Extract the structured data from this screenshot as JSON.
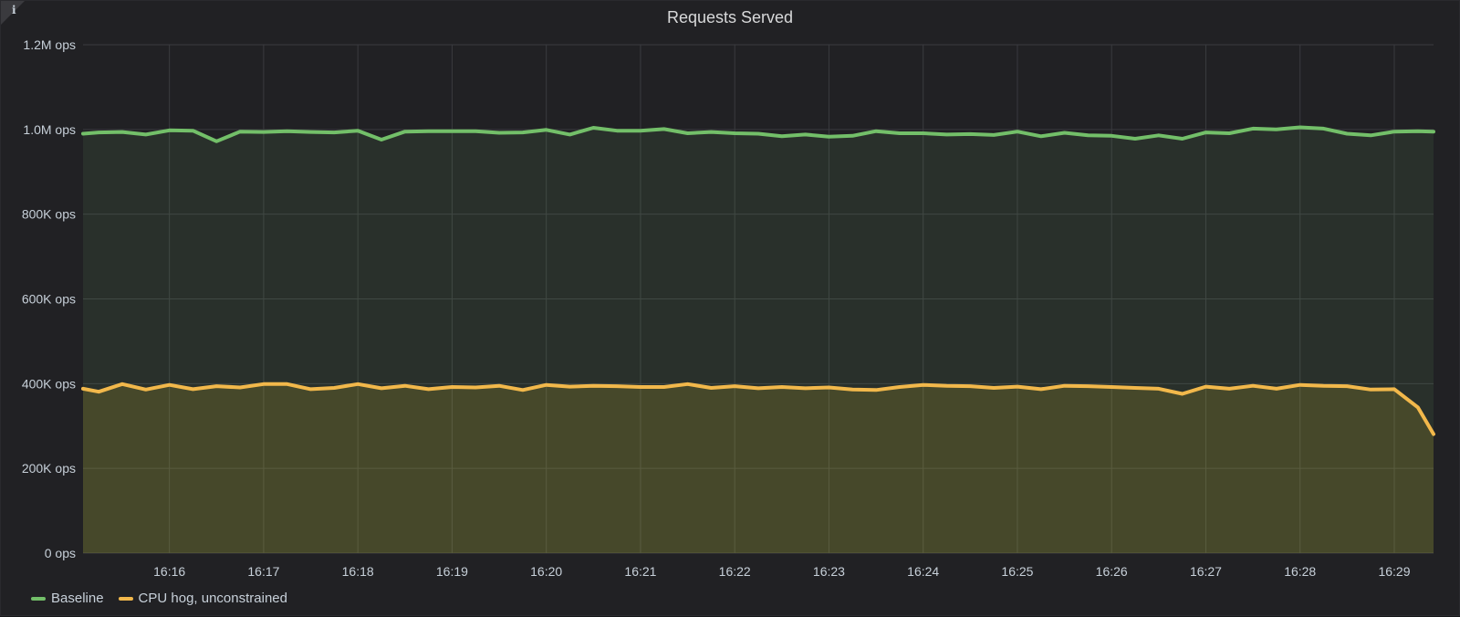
{
  "panel": {
    "title": "Requests Served",
    "info_icon": "info-icon"
  },
  "colors": {
    "background": "#212124",
    "grid": "#3a3b3f",
    "baseline": "#73bf69",
    "cpu_hog": "#fade2a",
    "cpu_hog_line": "#f2b84b"
  },
  "chart_data": {
    "type": "area",
    "title": "Requests Served",
    "xlabel": "",
    "ylabel": "",
    "ylim": [
      0,
      1200000
    ],
    "y_ticks": [
      0,
      200000,
      400000,
      600000,
      800000,
      1000000,
      1200000
    ],
    "y_tick_labels": [
      "0 ops",
      "200K ops",
      "400K ops",
      "600K ops",
      "800K ops",
      "1.0M ops",
      "1.2M ops"
    ],
    "xlim": [
      "16:15:05",
      "16:29:25"
    ],
    "x_ticks": [
      "16:16",
      "16:17",
      "16:18",
      "16:19",
      "16:20",
      "16:21",
      "16:22",
      "16:23",
      "16:24",
      "16:25",
      "16:26",
      "16:27",
      "16:28",
      "16:29"
    ],
    "grid": true,
    "legend_position": "bottom-left",
    "x": [
      "16:15:05",
      "16:15:15",
      "16:15:30",
      "16:15:45",
      "16:16:00",
      "16:16:15",
      "16:16:30",
      "16:16:45",
      "16:17:00",
      "16:17:15",
      "16:17:30",
      "16:17:45",
      "16:18:00",
      "16:18:15",
      "16:18:30",
      "16:18:45",
      "16:19:00",
      "16:19:15",
      "16:19:30",
      "16:19:45",
      "16:20:00",
      "16:20:15",
      "16:20:30",
      "16:20:45",
      "16:21:00",
      "16:21:15",
      "16:21:30",
      "16:21:45",
      "16:22:00",
      "16:22:15",
      "16:22:30",
      "16:22:45",
      "16:23:00",
      "16:23:15",
      "16:23:30",
      "16:23:45",
      "16:24:00",
      "16:24:15",
      "16:24:30",
      "16:24:45",
      "16:25:00",
      "16:25:15",
      "16:25:30",
      "16:25:45",
      "16:26:00",
      "16:26:15",
      "16:26:30",
      "16:26:45",
      "16:27:00",
      "16:27:15",
      "16:27:30",
      "16:27:45",
      "16:28:00",
      "16:28:15",
      "16:28:30",
      "16:28:45",
      "16:29:00",
      "16:29:15",
      "16:29:25"
    ],
    "series": [
      {
        "name": "Baseline",
        "color": "#73bf69",
        "values": [
          990000,
          993000,
          994000,
          988000,
          998000,
          997000,
          972000,
          995000,
          994000,
          996000,
          994000,
          993000,
          997000,
          976000,
          995000,
          996000,
          996000,
          996000,
          992000,
          993000,
          999000,
          988000,
          1004000,
          997000,
          997000,
          1001000,
          991000,
          994000,
          991000,
          990000,
          984000,
          988000,
          983000,
          985000,
          996000,
          991000,
          991000,
          988000,
          989000,
          987000,
          995000,
          984000,
          992000,
          986000,
          985000,
          978000,
          986000,
          978000,
          993000,
          991000,
          1002000,
          1000000,
          1005000,
          1002000,
          990000,
          986000,
          995000,
          996000,
          995000
        ]
      },
      {
        "name": "CPU hog, unconstrained",
        "color": "#f2b84b",
        "values": [
          388000,
          381000,
          399000,
          386000,
          397000,
          387000,
          394000,
          391000,
          399000,
          399000,
          387000,
          390000,
          399000,
          389000,
          395000,
          387000,
          392000,
          391000,
          395000,
          385000,
          397000,
          393000,
          395000,
          394000,
          392000,
          392000,
          399000,
          390000,
          394000,
          389000,
          392000,
          389000,
          391000,
          386000,
          385000,
          392000,
          397000,
          395000,
          394000,
          390000,
          393000,
          387000,
          395000,
          394000,
          392000,
          390000,
          388000,
          376000,
          393000,
          388000,
          395000,
          388000,
          397000,
          395000,
          394000,
          386000,
          387000,
          344000,
          281000
        ]
      }
    ]
  }
}
